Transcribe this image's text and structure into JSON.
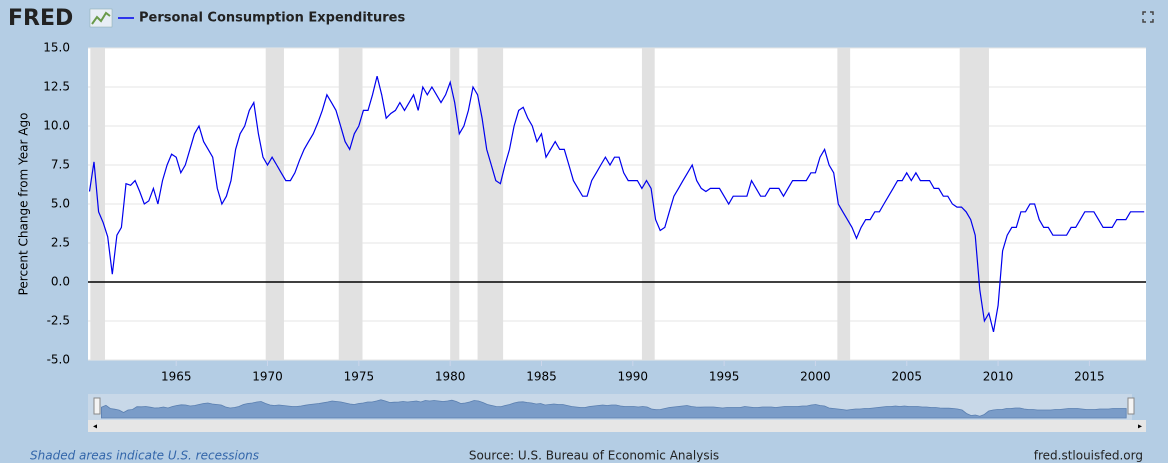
{
  "chart_data": {
    "type": "line",
    "brand": "FRED",
    "ylabel": "Percent Change from Year Ago",
    "footer_left": "Shaded areas indicate U.S. recessions",
    "source": "Source: U.S. Bureau of Economic Analysis",
    "site": "fred.stlouisfed.org",
    "xlim": [
      1960.17,
      2018.1
    ],
    "xticks": [
      1965,
      1970,
      1975,
      1980,
      1985,
      1990,
      1995,
      2000,
      2005,
      2010,
      2015
    ],
    "ylim": [
      -5,
      15
    ],
    "yticks": [
      {
        "value": -5,
        "label": "-5.0"
      },
      -2.5,
      {
        "value": 0,
        "label": "0.0"
      },
      2.5,
      {
        "value": 5,
        "label": "5.0"
      },
      7.5,
      {
        "value": 10,
        "label": "10.0"
      },
      12.5,
      {
        "value": 15,
        "label": "15.0"
      }
    ],
    "grid": true,
    "recessions": [
      [
        1960.3,
        1961.1
      ],
      [
        1969.9,
        1970.9
      ],
      [
        1973.9,
        1975.2
      ],
      [
        1980.0,
        1980.5
      ],
      [
        1981.5,
        1982.9
      ],
      [
        1990.5,
        1991.2
      ],
      [
        2001.2,
        2001.9
      ],
      [
        2007.9,
        2009.5
      ]
    ],
    "x": [
      1960.25,
      1960.5,
      1960.75,
      1961,
      1961.25,
      1961.5,
      1961.75,
      1962,
      1962.25,
      1962.5,
      1962.75,
      1963,
      1963.25,
      1963.5,
      1963.75,
      1964,
      1964.25,
      1964.5,
      1964.75,
      1965,
      1965.25,
      1965.5,
      1965.75,
      1966,
      1966.25,
      1966.5,
      1966.75,
      1967,
      1967.25,
      1967.5,
      1967.75,
      1968,
      1968.25,
      1968.5,
      1968.75,
      1969,
      1969.25,
      1969.5,
      1969.75,
      1970,
      1970.25,
      1970.5,
      1970.75,
      1971,
      1971.25,
      1971.5,
      1971.75,
      1972,
      1972.25,
      1972.5,
      1972.75,
      1973,
      1973.25,
      1973.5,
      1973.75,
      1974,
      1974.25,
      1974.5,
      1974.75,
      1975,
      1975.25,
      1975.5,
      1975.75,
      1976,
      1976.25,
      1976.5,
      1976.75,
      1977,
      1977.25,
      1977.5,
      1977.75,
      1978,
      1978.25,
      1978.5,
      1978.75,
      1979,
      1979.25,
      1979.5,
      1979.75,
      1980,
      1980.25,
      1980.5,
      1980.75,
      1981,
      1981.25,
      1981.5,
      1981.75,
      1982,
      1982.25,
      1982.5,
      1982.75,
      1983,
      1983.25,
      1983.5,
      1983.75,
      1984,
      1984.25,
      1984.5,
      1984.75,
      1985,
      1985.25,
      1985.5,
      1985.75,
      1986,
      1986.25,
      1986.5,
      1986.75,
      1987,
      1987.25,
      1987.5,
      1987.75,
      1988,
      1988.25,
      1988.5,
      1988.75,
      1989,
      1989.25,
      1989.5,
      1989.75,
      1990,
      1990.25,
      1990.5,
      1990.75,
      1991,
      1991.25,
      1991.5,
      1991.75,
      1992,
      1992.25,
      1992.5,
      1992.75,
      1993,
      1993.25,
      1993.5,
      1993.75,
      1994,
      1994.25,
      1994.5,
      1994.75,
      1995,
      1995.25,
      1995.5,
      1995.75,
      1996,
      1996.25,
      1996.5,
      1996.75,
      1997,
      1997.25,
      1997.5,
      1997.75,
      1998,
      1998.25,
      1998.5,
      1998.75,
      1999,
      1999.25,
      1999.5,
      1999.75,
      2000,
      2000.25,
      2000.5,
      2000.75,
      2001,
      2001.25,
      2001.5,
      2001.75,
      2002,
      2002.25,
      2002.5,
      2002.75,
      2003,
      2003.25,
      2003.5,
      2003.75,
      2004,
      2004.25,
      2004.5,
      2004.75,
      2005,
      2005.25,
      2005.5,
      2005.75,
      2006,
      2006.25,
      2006.5,
      2006.75,
      2007,
      2007.25,
      2007.5,
      2007.75,
      2008,
      2008.25,
      2008.5,
      2008.75,
      2009,
      2009.25,
      2009.5,
      2009.75,
      2010,
      2010.25,
      2010.5,
      2010.75,
      2011,
      2011.25,
      2011.5,
      2011.75,
      2012,
      2012.25,
      2012.5,
      2012.75,
      2013,
      2013.25,
      2013.5,
      2013.75,
      2014,
      2014.25,
      2014.5,
      2014.75,
      2015,
      2015.25,
      2015.5,
      2015.75,
      2016,
      2016.25,
      2016.5,
      2016.75,
      2017,
      2017.25,
      2017.5,
      2017.75,
      2018
    ],
    "series": [
      {
        "name": "Personal Consumption Expenditures",
        "color": "#0000ee",
        "values": [
          5.8,
          7.7,
          4.5,
          3.8,
          2.9,
          0.5,
          3.0,
          3.5,
          6.3,
          6.2,
          6.5,
          5.8,
          5.0,
          5.2,
          6.0,
          5.0,
          6.5,
          7.5,
          8.2,
          8.0,
          7.0,
          7.5,
          8.5,
          9.5,
          10.0,
          9.0,
          8.5,
          8.0,
          6.0,
          5.0,
          5.5,
          6.5,
          8.5,
          9.5,
          10.0,
          11.0,
          11.5,
          9.5,
          8.0,
          7.5,
          8.0,
          7.5,
          7.0,
          6.5,
          6.5,
          7.0,
          7.8,
          8.5,
          9.0,
          9.5,
          10.2,
          11.0,
          12.0,
          11.5,
          11.0,
          10.0,
          9.0,
          8.5,
          9.5,
          10.0,
          11.0,
          11.0,
          12.0,
          13.2,
          12.0,
          10.5,
          10.8,
          11.0,
          11.5,
          11.0,
          11.5,
          12.0,
          11.0,
          12.5,
          12.0,
          12.5,
          12.0,
          11.5,
          12.0,
          12.8,
          11.5,
          9.5,
          10.0,
          11.0,
          12.5,
          12.0,
          10.5,
          8.5,
          7.5,
          6.5,
          6.3,
          7.5,
          8.5,
          10.0,
          11.0,
          11.2,
          10.5,
          10.0,
          9.0,
          9.5,
          8.0,
          8.5,
          9.0,
          8.5,
          8.5,
          7.5,
          6.5,
          6.0,
          5.5,
          5.5,
          6.5,
          7.0,
          7.5,
          8.0,
          7.5,
          8.0,
          8.0,
          7.0,
          6.5,
          6.5,
          6.5,
          6.0,
          6.5,
          6.0,
          4.0,
          3.3,
          3.5,
          4.5,
          5.5,
          6.0,
          6.5,
          7.0,
          7.5,
          6.5,
          6.0,
          5.8,
          6.0,
          6.0,
          6.0,
          5.5,
          5.0,
          5.5,
          5.5,
          5.5,
          5.5,
          6.5,
          6.0,
          5.5,
          5.5,
          6.0,
          6.0,
          6.0,
          5.5,
          6.0,
          6.5,
          6.5,
          6.5,
          6.5,
          7.0,
          7.0,
          8.0,
          8.5,
          7.5,
          7.0,
          5.0,
          4.5,
          4.0,
          3.5,
          2.8,
          3.5,
          4.0,
          4.0,
          4.5,
          4.5,
          5.0,
          5.5,
          6.0,
          6.5,
          6.5,
          7.0,
          6.5,
          7.0,
          6.5,
          6.5,
          6.5,
          6.0,
          6.0,
          5.5,
          5.5,
          5.0,
          4.8,
          4.8,
          4.5,
          4.0,
          3.0,
          -0.5,
          -2.5,
          -2.0,
          -3.2,
          -1.5,
          2.0,
          3.0,
          3.5,
          3.5,
          4.5,
          4.5,
          5.0,
          5.0,
          4.0,
          3.5,
          3.5,
          3.0,
          3.0,
          3.0,
          3.0,
          3.5,
          3.5,
          4.0,
          4.5,
          4.5,
          4.5,
          4.0,
          3.5,
          3.5,
          3.5,
          4.0,
          4.0,
          4.0,
          4.5,
          4.5,
          4.5,
          4.5
        ]
      }
    ]
  }
}
